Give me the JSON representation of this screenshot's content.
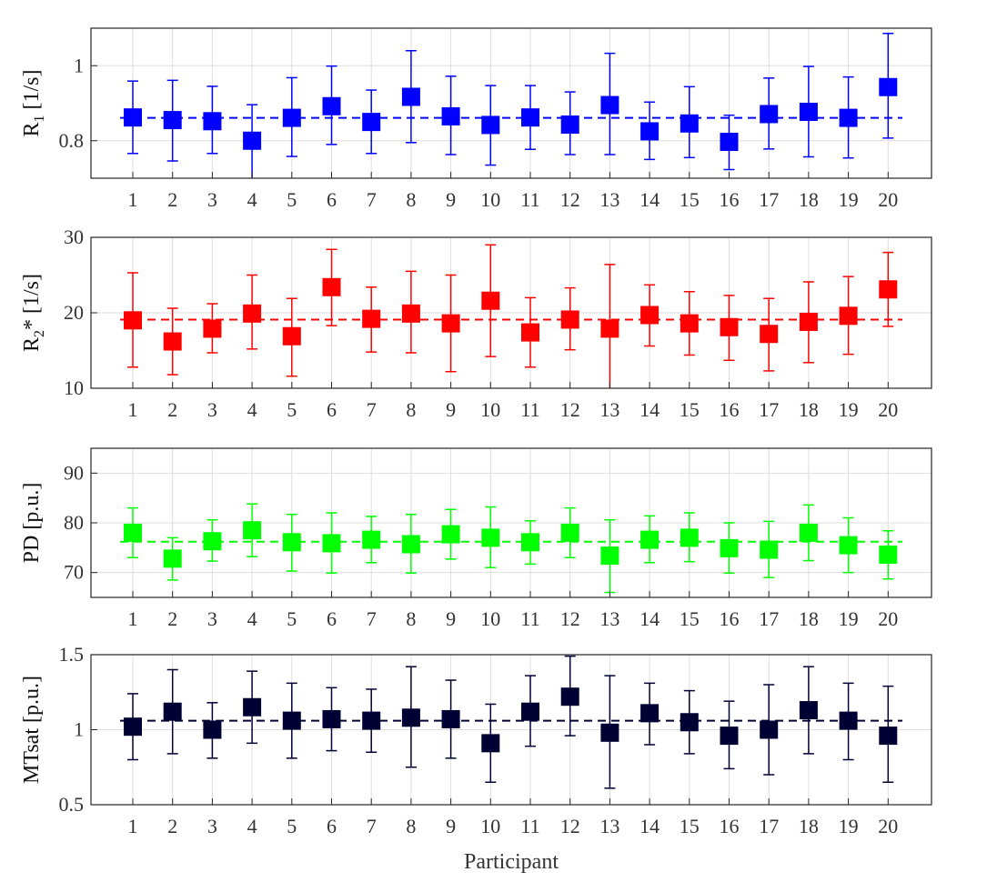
{
  "chart_data": [
    {
      "type": "scatter",
      "ylabel_main": "R",
      "ylabel_sub": "1",
      "ylabel_rest": " [1/s]",
      "color": "#0000ff",
      "ylim": [
        0.7,
        1.1
      ],
      "yticks": [
        0.8,
        1
      ],
      "ytick_labels": [
        "0.8",
        "1"
      ],
      "mean": 0.861,
      "categories": [
        "1",
        "2",
        "3",
        "4",
        "5",
        "6",
        "7",
        "8",
        "9",
        "10",
        "11",
        "12",
        "13",
        "14",
        "15",
        "16",
        "17",
        "18",
        "19",
        "20"
      ],
      "values": [
        0.862,
        0.855,
        0.852,
        0.8,
        0.861,
        0.892,
        0.85,
        0.917,
        0.865,
        0.842,
        0.862,
        0.843,
        0.895,
        0.825,
        0.846,
        0.797,
        0.871,
        0.877,
        0.861,
        0.943
      ],
      "err_low": [
        0.766,
        0.746,
        0.766,
        0.698,
        0.758,
        0.79,
        0.766,
        0.795,
        0.763,
        0.735,
        0.777,
        0.763,
        0.763,
        0.75,
        0.755,
        0.723,
        0.778,
        0.757,
        0.754,
        0.807
      ],
      "err_high": [
        0.959,
        0.961,
        0.945,
        0.896,
        0.968,
        0.999,
        0.935,
        1.04,
        0.972,
        0.947,
        0.947,
        0.93,
        1.033,
        0.903,
        0.944,
        0.868,
        0.967,
        0.998,
        0.97,
        1.086
      ]
    },
    {
      "type": "scatter",
      "ylabel_main": "R",
      "ylabel_sub": "2",
      "ylabel_rest": "* [1/s]",
      "color": "#ff0000",
      "ylim": [
        10,
        30
      ],
      "yticks": [
        10,
        20,
        30
      ],
      "ytick_labels": [
        "10",
        "20",
        "30"
      ],
      "mean": 19.1,
      "categories": [
        "1",
        "2",
        "3",
        "4",
        "5",
        "6",
        "7",
        "8",
        "9",
        "10",
        "11",
        "12",
        "13",
        "14",
        "15",
        "16",
        "17",
        "18",
        "19",
        "20"
      ],
      "values": [
        19.0,
        16.2,
        17.9,
        19.9,
        16.9,
        23.4,
        19.2,
        19.9,
        18.6,
        21.6,
        17.4,
        19.1,
        17.9,
        19.7,
        18.6,
        18.1,
        17.2,
        18.8,
        19.6,
        23.1
      ],
      "err_low": [
        12.8,
        11.8,
        14.7,
        15.2,
        11.6,
        18.3,
        14.8,
        14.7,
        12.2,
        14.2,
        12.8,
        15.1,
        9.8,
        15.6,
        14.4,
        13.7,
        12.3,
        13.4,
        14.5,
        18.2
      ],
      "err_high": [
        25.3,
        20.6,
        21.2,
        25.0,
        21.9,
        28.4,
        23.4,
        25.5,
        25.0,
        29.0,
        22.0,
        23.3,
        26.4,
        23.7,
        22.8,
        22.3,
        21.9,
        24.1,
        24.8,
        28.0
      ]
    },
    {
      "type": "scatter",
      "ylabel_main": "PD [p.u.]",
      "ylabel_sub": "",
      "ylabel_rest": "",
      "color": "#00ff00",
      "ylim": [
        65,
        95
      ],
      "yticks": [
        70,
        80,
        90
      ],
      "ytick_labels": [
        "70",
        "80",
        "90"
      ],
      "mean": 76.2,
      "categories": [
        "1",
        "2",
        "3",
        "4",
        "5",
        "6",
        "7",
        "8",
        "9",
        "10",
        "11",
        "12",
        "13",
        "14",
        "15",
        "16",
        "17",
        "18",
        "19",
        "20"
      ],
      "values": [
        78.0,
        72.8,
        76.3,
        78.5,
        76.1,
        75.9,
        76.6,
        75.7,
        77.7,
        77.0,
        76.1,
        78.0,
        73.4,
        76.6,
        77.0,
        74.9,
        74.6,
        78.0,
        75.5,
        73.6
      ],
      "err_low": [
        73.0,
        68.5,
        72.3,
        73.2,
        70.3,
        69.9,
        72.0,
        69.9,
        72.7,
        71.0,
        71.7,
        73.0,
        66.0,
        72.0,
        72.2,
        69.9,
        69.0,
        72.4,
        70.0,
        68.7
      ],
      "err_high": [
        83.0,
        77.0,
        80.6,
        83.8,
        81.7,
        82.0,
        81.3,
        81.7,
        82.7,
        83.2,
        80.4,
        83.0,
        80.6,
        81.4,
        82.0,
        80.0,
        80.3,
        83.6,
        81.0,
        78.4
      ]
    },
    {
      "type": "scatter",
      "ylabel_main": "MTsat [p.u.]",
      "ylabel_sub": "",
      "ylabel_rest": "",
      "color": "#000033",
      "ylim": [
        0.5,
        1.5
      ],
      "yticks": [
        0.5,
        1,
        1.5
      ],
      "ytick_labels": [
        "0.5",
        "1",
        "1.5"
      ],
      "mean": 1.06,
      "xlabel": "Participant",
      "categories": [
        "1",
        "2",
        "3",
        "4",
        "5",
        "6",
        "7",
        "8",
        "9",
        "10",
        "11",
        "12",
        "13",
        "14",
        "15",
        "16",
        "17",
        "18",
        "19",
        "20"
      ],
      "values": [
        1.02,
        1.12,
        1.0,
        1.15,
        1.06,
        1.07,
        1.06,
        1.08,
        1.07,
        0.91,
        1.12,
        1.22,
        0.98,
        1.11,
        1.05,
        0.96,
        1.0,
        1.13,
        1.06,
        0.96
      ],
      "err_low": [
        0.8,
        0.84,
        0.81,
        0.91,
        0.81,
        0.86,
        0.85,
        0.75,
        0.81,
        0.65,
        0.89,
        0.96,
        0.61,
        0.9,
        0.84,
        0.74,
        0.7,
        0.84,
        0.8,
        0.65
      ],
      "err_high": [
        1.24,
        1.4,
        1.18,
        1.39,
        1.31,
        1.28,
        1.27,
        1.42,
        1.33,
        1.17,
        1.36,
        1.49,
        1.36,
        1.31,
        1.26,
        1.19,
        1.3,
        1.42,
        1.31,
        1.29
      ]
    }
  ]
}
